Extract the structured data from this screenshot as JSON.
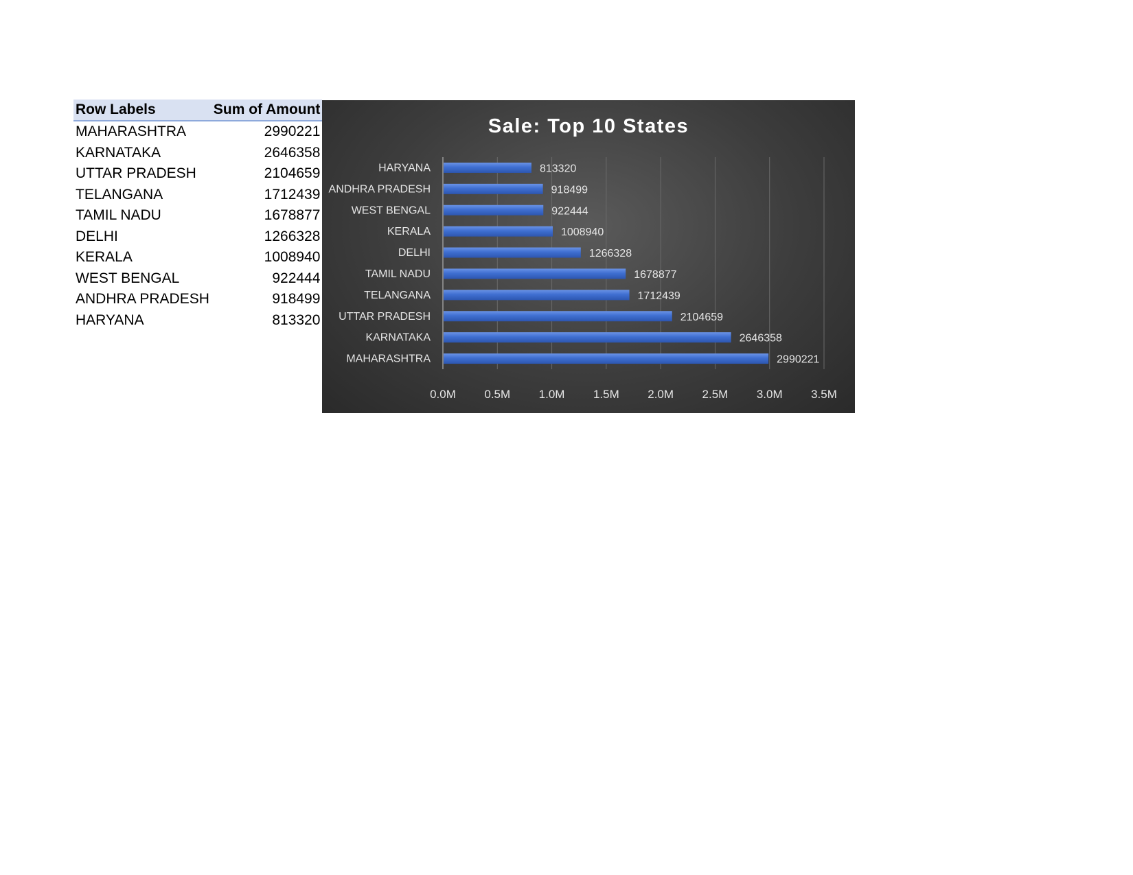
{
  "pivot": {
    "header_label": "Row Labels",
    "header_value": "Sum of Amount",
    "rows": [
      {
        "label": "MAHARASHTRA",
        "value": "2990221"
      },
      {
        "label": "KARNATAKA",
        "value": "2646358"
      },
      {
        "label": "UTTAR PRADESH",
        "value": "2104659"
      },
      {
        "label": "TELANGANA",
        "value": "1712439"
      },
      {
        "label": "TAMIL NADU",
        "value": "1678877"
      },
      {
        "label": "DELHI",
        "value": "1266328"
      },
      {
        "label": "KERALA",
        "value": "1008940"
      },
      {
        "label": "WEST BENGAL",
        "value": "922444"
      },
      {
        "label": "ANDHRA PRADESH",
        "value": "918499"
      },
      {
        "label": "HARYANA",
        "value": "813320"
      }
    ]
  },
  "chart_data": {
    "type": "bar",
    "orientation": "horizontal",
    "title": "Sale: Top 10 States",
    "categories": [
      "HARYANA",
      "ANDHRA PRADESH",
      "WEST BENGAL",
      "KERALA",
      "DELHI",
      "TAMIL NADU",
      "TELANGANA",
      "UTTAR PRADESH",
      "KARNATAKA",
      "MAHARASHTRA"
    ],
    "values": [
      813320,
      918499,
      922444,
      1008940,
      1266328,
      1678877,
      1712439,
      2104659,
      2646358,
      2990221
    ],
    "xlim": [
      0,
      3500000
    ],
    "x_ticks": [
      "0.0M",
      "0.5M",
      "1.0M",
      "1.5M",
      "2.0M",
      "2.5M",
      "3.0M",
      "3.5M"
    ],
    "grid": true,
    "legend": "none",
    "colors": {
      "bar": "#3f6fd1",
      "bar_highlight": "#6a93e6",
      "background": "#404040",
      "text": "#e6e6e6"
    }
  }
}
